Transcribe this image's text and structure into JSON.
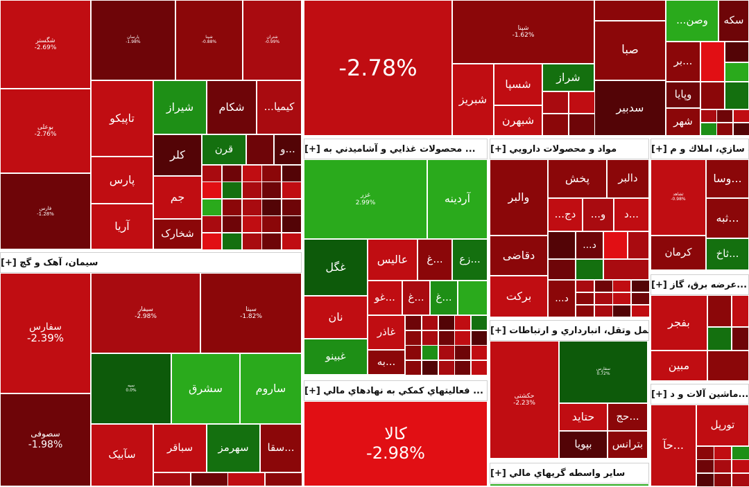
{
  "colors": {
    "r1": "#c00d12",
    "r2": "#a90b10",
    "r3": "#8b0709",
    "r4": "#6e0508",
    "r5": "#530406",
    "r6": "#e10f14",
    "g1": "#2aaa1c",
    "g2": "#1e8f16",
    "g3": "#14700f",
    "g4": "#0d5a0a"
  },
  "chart_data": {
    "type": "treemap",
    "sectors": [
      {
        "name": "سیمان، آهک و گچ [+]"
      },
      {
        "name": "... محصولات غذايي و آشاميدني به [+]"
      },
      {
        "name": "مواد و محصولات دارويي [+]"
      },
      {
        "name": "... ه سازي، املاك و م [+]"
      },
      {
        "name": "...عرضه برق، گاز [+]"
      },
      {
        "name": "حمل وتقل، انبارداري و ارتباطات [+]"
      },
      {
        "name": "... فعاليتهاي كمكي به نهادهاي مالي [+]"
      },
      {
        "name": "...ماشين آلات و د [+]"
      },
      {
        "name": "ساير واسطه گريهاي مالي [+]"
      }
    ],
    "tiles": [
      {
        "name": "شگستر",
        "change": "-2.69%"
      },
      {
        "name": "پارسان",
        "change": "-1.98%"
      },
      {
        "name": "شپنا",
        "change": "-0.88%"
      },
      {
        "name": "شتران",
        "change": "-0.99%"
      },
      {
        "name": "",
        "change": "-2.78%"
      },
      {
        "name": "شپنا",
        "change": "-1.62%"
      },
      {
        "name": "بوعلی",
        "change": "-2.76%"
      },
      {
        "name": "فارس",
        "change": "-1.28%"
      },
      {
        "name": "سفارس",
        "change": "-2.39%"
      },
      {
        "name": "سیفار",
        "change": "-2.98%"
      },
      {
        "name": "سیتا",
        "change": "-1.82%"
      },
      {
        "name": "سیه",
        "change": "0.0%"
      },
      {
        "name": "سصوفی",
        "change": "-1.98%"
      },
      {
        "name": "غزر",
        "change": "2.99%"
      },
      {
        "name": "کالا",
        "change": "-2.98%"
      },
      {
        "name": "حکشتی",
        "change": "-2.23%"
      },
      {
        "name": "سفارس",
        "change": "0.72%"
      },
      {
        "name": "ثشاهد",
        "change": "-0.98%"
      },
      {
        "name": "تاپیکو"
      },
      {
        "name": "پارس"
      },
      {
        "name": "آریا"
      },
      {
        "name": "شیراز"
      },
      {
        "name": "شکام"
      },
      {
        "name": "...کیمیا"
      },
      {
        "name": "کلر"
      },
      {
        "name": "جم"
      },
      {
        "name": "شخارک"
      },
      {
        "name": "قرن"
      },
      {
        "name": "و..."
      },
      {
        "name": "شبریز"
      },
      {
        "name": "شسپا"
      },
      {
        "name": "شبهرن"
      },
      {
        "name": "شراز"
      },
      {
        "name": "صبا"
      },
      {
        "name": "سدبیر"
      },
      {
        "name": "...وصن"
      },
      {
        "name": "سکه"
      },
      {
        "name": "بر..."
      },
      {
        "name": "وپایا"
      },
      {
        "name": "شهر"
      },
      {
        "name": "آردینه"
      },
      {
        "name": "غگل"
      },
      {
        "name": "عالیس"
      },
      {
        "name": "غ..."
      },
      {
        "name": "زع..."
      },
      {
        "name": "نان"
      },
      {
        "name": "غو..."
      },
      {
        "name": "غ..."
      },
      {
        "name": "غ..."
      },
      {
        "name": "غاذر"
      },
      {
        "name": "غبینو"
      },
      {
        "name": "به..."
      },
      {
        "name": "والبر"
      },
      {
        "name": "پخش"
      },
      {
        "name": "دالبر"
      },
      {
        "name": "...دج"
      },
      {
        "name": "...و"
      },
      {
        "name": "د..."
      },
      {
        "name": "...د"
      },
      {
        "name": "دقاضی"
      },
      {
        "name": "...د"
      },
      {
        "name": "برکت"
      },
      {
        "name": "وسا..."
      },
      {
        "name": "ثبه..."
      },
      {
        "name": "کرمان"
      },
      {
        "name": "ثاخ..."
      },
      {
        "name": "بفجر"
      },
      {
        "name": "مبین"
      },
      {
        "name": "تورپل"
      },
      {
        "name": "حآ..."
      },
      {
        "name": "حتاید"
      },
      {
        "name": "حج..."
      },
      {
        "name": "بپویا"
      },
      {
        "name": "بترانس"
      },
      {
        "name": "سشرق"
      },
      {
        "name": "ساروم"
      },
      {
        "name": "سآبیک"
      },
      {
        "name": "سباقر"
      },
      {
        "name": "سهرمز"
      },
      {
        "name": "سقا..."
      }
    ]
  }
}
